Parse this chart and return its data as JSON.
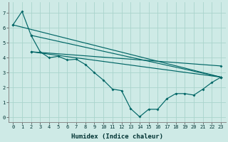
{
  "xlabel": "Humidex (Indice chaleur)",
  "xlim": [
    -0.5,
    23.5
  ],
  "ylim": [
    -0.3,
    7.7
  ],
  "xticks": [
    0,
    1,
    2,
    3,
    4,
    5,
    6,
    7,
    8,
    9,
    10,
    11,
    12,
    13,
    14,
    15,
    16,
    17,
    18,
    19,
    20,
    21,
    22,
    23
  ],
  "yticks": [
    0,
    1,
    2,
    3,
    4,
    5,
    6,
    7
  ],
  "bg_color": "#ceeae6",
  "grid_color": "#aad4cc",
  "line_color": "#006666",
  "line1_x": [
    0,
    1,
    2,
    3,
    4,
    5,
    6,
    7,
    8,
    9,
    10,
    11,
    12,
    13,
    14,
    15,
    16,
    17,
    18,
    19,
    20,
    21,
    22,
    23
  ],
  "line1_y": [
    6.2,
    7.1,
    5.5,
    4.4,
    4.0,
    4.1,
    3.85,
    3.9,
    3.55,
    3.0,
    2.5,
    1.9,
    1.8,
    0.6,
    0.05,
    0.55,
    0.55,
    1.25,
    1.6,
    1.6,
    1.5,
    1.9,
    2.35,
    2.7
  ],
  "line2_x": [
    0,
    23
  ],
  "line2_y": [
    6.2,
    2.7
  ],
  "line3_x": [
    2,
    23
  ],
  "line3_y": [
    5.5,
    2.7
  ],
  "line4_x": [
    2,
    23
  ],
  "line4_y": [
    4.4,
    2.7
  ],
  "line5_x": [
    2,
    23
  ],
  "line5_y": [
    4.4,
    3.45
  ]
}
